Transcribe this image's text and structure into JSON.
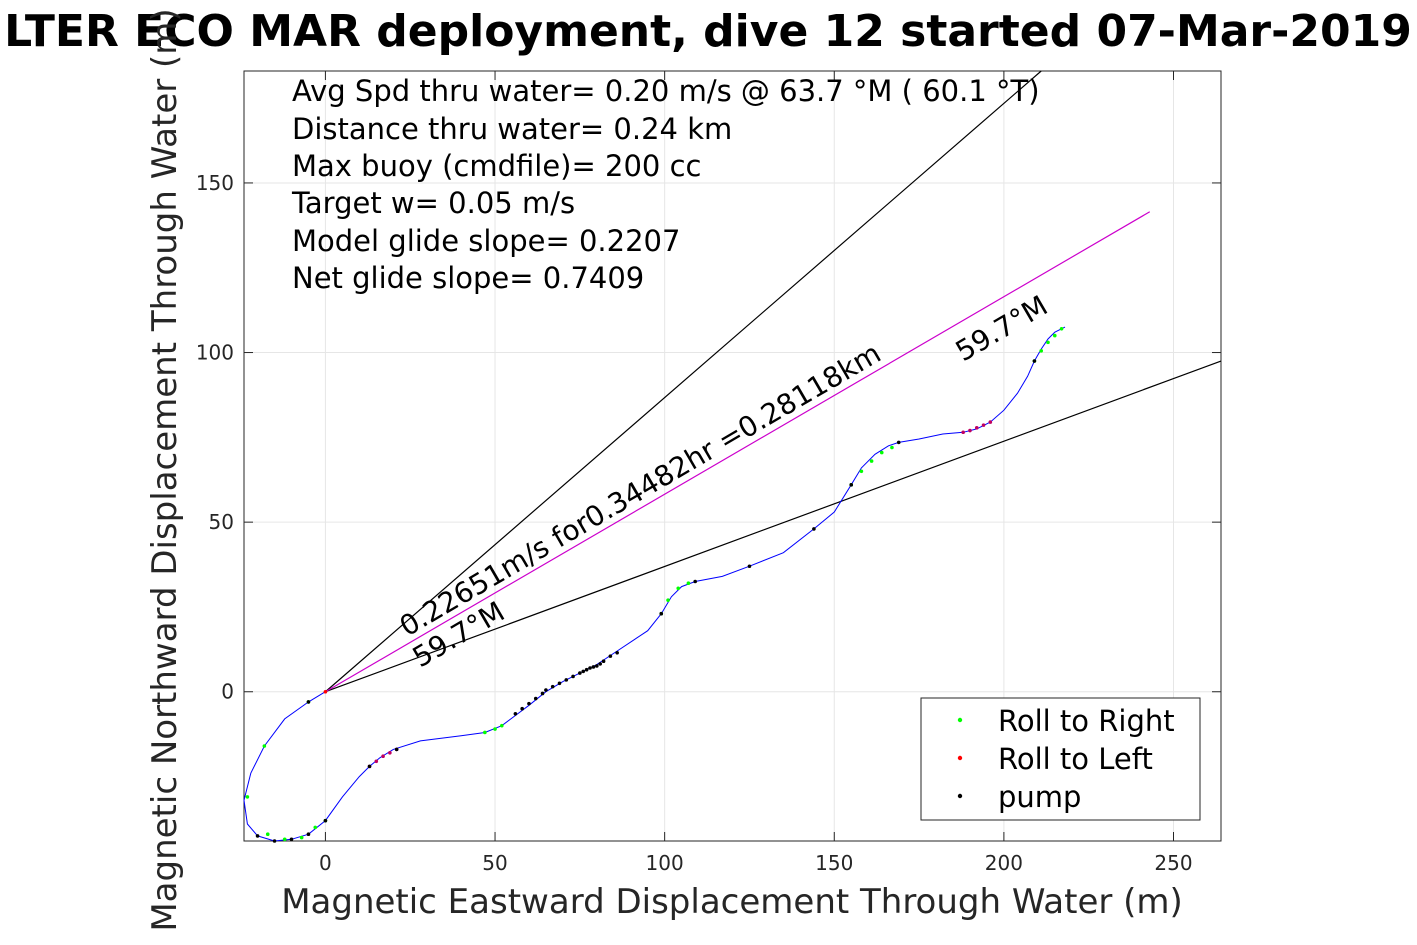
{
  "chart_data": {
    "type": "scatter",
    "title": "LTER ECO MAR deployment, dive 12 started 07-Mar-2019",
    "xlabel": "Magnetic Eastward Displacement Through Water (m)",
    "ylabel": "Magnetic Northward Displacement Through Water (m)",
    "xlim": [
      -24,
      264
    ],
    "ylim": [
      -44,
      183
    ],
    "xticks": [
      0,
      50,
      100,
      150,
      200,
      250
    ],
    "yticks": [
      0,
      50,
      100,
      150
    ],
    "grid": true,
    "legend_position": "bottom-right",
    "annotations": [
      "Avg Spd thru water=  0.20 m/s @  63.7 °M ( 60.1 °T)",
      "Distance thru water=  0.24 km",
      "Max buoy (cmdfile)= 200 cc",
      "Target w= 0.05 m/s",
      "Model glide slope= 0.2207",
      "Net glide slope= 0.7409"
    ],
    "line_labels": {
      "speed": "0.22651m/s for0.34482hr =0.28118km",
      "heading_low": "59.7°M",
      "heading_high": "59.7°M"
    },
    "reference_lines": [
      {
        "name": "upper-heading",
        "from": [
          0,
          0
        ],
        "to": [
          211,
          183
        ],
        "color": "#000000"
      },
      {
        "name": "lower-heading",
        "from": [
          0,
          0
        ],
        "to": [
          264,
          97.5
        ],
        "color": "#000000"
      },
      {
        "name": "net-track",
        "from": [
          0,
          0
        ],
        "to": [
          243,
          141.5
        ],
        "color": "#cc00cc"
      }
    ],
    "trajectory": {
      "color": "#0000ff",
      "x": [
        0,
        -5,
        -12,
        -18,
        -22,
        -24,
        -23,
        -20,
        -15,
        -10,
        -5,
        0,
        5,
        10,
        13,
        16,
        20,
        28,
        40,
        47,
        52,
        56,
        60,
        65,
        70,
        75,
        80,
        86,
        95,
        99,
        102,
        105,
        109,
        117,
        125,
        135,
        144,
        150,
        155,
        158,
        162,
        166,
        169,
        175,
        182,
        188,
        192,
        196,
        200,
        204,
        207,
        209,
        211,
        213,
        215,
        218
      ],
      "y": [
        0,
        -3,
        -8,
        -16,
        -24,
        -32,
        -39,
        -42.5,
        -44,
        -43.5,
        -42,
        -38,
        -31,
        -25,
        -22,
        -19.5,
        -17,
        -14.5,
        -13,
        -12,
        -10,
        -7,
        -4,
        0,
        3,
        5.5,
        8,
        12,
        18,
        23,
        28,
        31,
        32.5,
        34,
        37,
        41,
        48,
        53,
        61,
        66,
        70,
        72.5,
        73.5,
        74.5,
        76,
        76.5,
        77.5,
        79.5,
        83,
        88,
        93,
        97.5,
        101,
        104,
        106,
        107.5
      ]
    },
    "series": [
      {
        "name": "Roll to Right",
        "color": "#00ff00",
        "marker": "dot",
        "x": [
          -5,
          -18,
          -23,
          -17,
          -12,
          -7,
          -3,
          0,
          47,
          50,
          52,
          99,
          101,
          104,
          107,
          155,
          158,
          161,
          164,
          167,
          209,
          211,
          213,
          215,
          217
        ],
        "y": [
          -3,
          -16,
          -31,
          -42,
          -43.5,
          -43,
          -40,
          -38,
          -12,
          -11,
          -10,
          23,
          27,
          30.5,
          32,
          61,
          65,
          68,
          70.5,
          72,
          97.5,
          100.5,
          103,
          105,
          107
        ]
      },
      {
        "name": "Roll to Left",
        "color": "#ff0000",
        "marker": "dot",
        "x": [
          0,
          13,
          15,
          17,
          19,
          21,
          188,
          190,
          192,
          194,
          196
        ],
        "y": [
          0,
          -22,
          -20.5,
          -19,
          -18,
          -17,
          76.5,
          77,
          77.8,
          78.6,
          79.5
        ],
        "fill_colors": [
          "#ff0000",
          "#c00060",
          "#c00060",
          "#c00060",
          "#c00060",
          "#c00060",
          "#c00060",
          "#c00060",
          "#c00060",
          "#c00060",
          "#c00060"
        ]
      },
      {
        "name": "pump",
        "color": "#000000",
        "marker": "dot",
        "x": [
          -5,
          -20,
          -15,
          -10,
          -5,
          0,
          13,
          21,
          56,
          58,
          60,
          62,
          64,
          65,
          67,
          69,
          71,
          73,
          75,
          76,
          77,
          78,
          79,
          80,
          81,
          82,
          84,
          86,
          99,
          109,
          125,
          144,
          155,
          169,
          209
        ],
        "y": [
          -3,
          -42.5,
          -44,
          -43.5,
          -42,
          -38,
          -22,
          -17,
          -6.5,
          -5,
          -3.5,
          -2,
          -0.5,
          0.5,
          1.5,
          2.5,
          3.5,
          4.5,
          5.5,
          6,
          6.5,
          7,
          7.3,
          7.6,
          8.2,
          9,
          10.5,
          11.5,
          23,
          32.5,
          37,
          48,
          61,
          73.5,
          97.5
        ]
      }
    ]
  }
}
